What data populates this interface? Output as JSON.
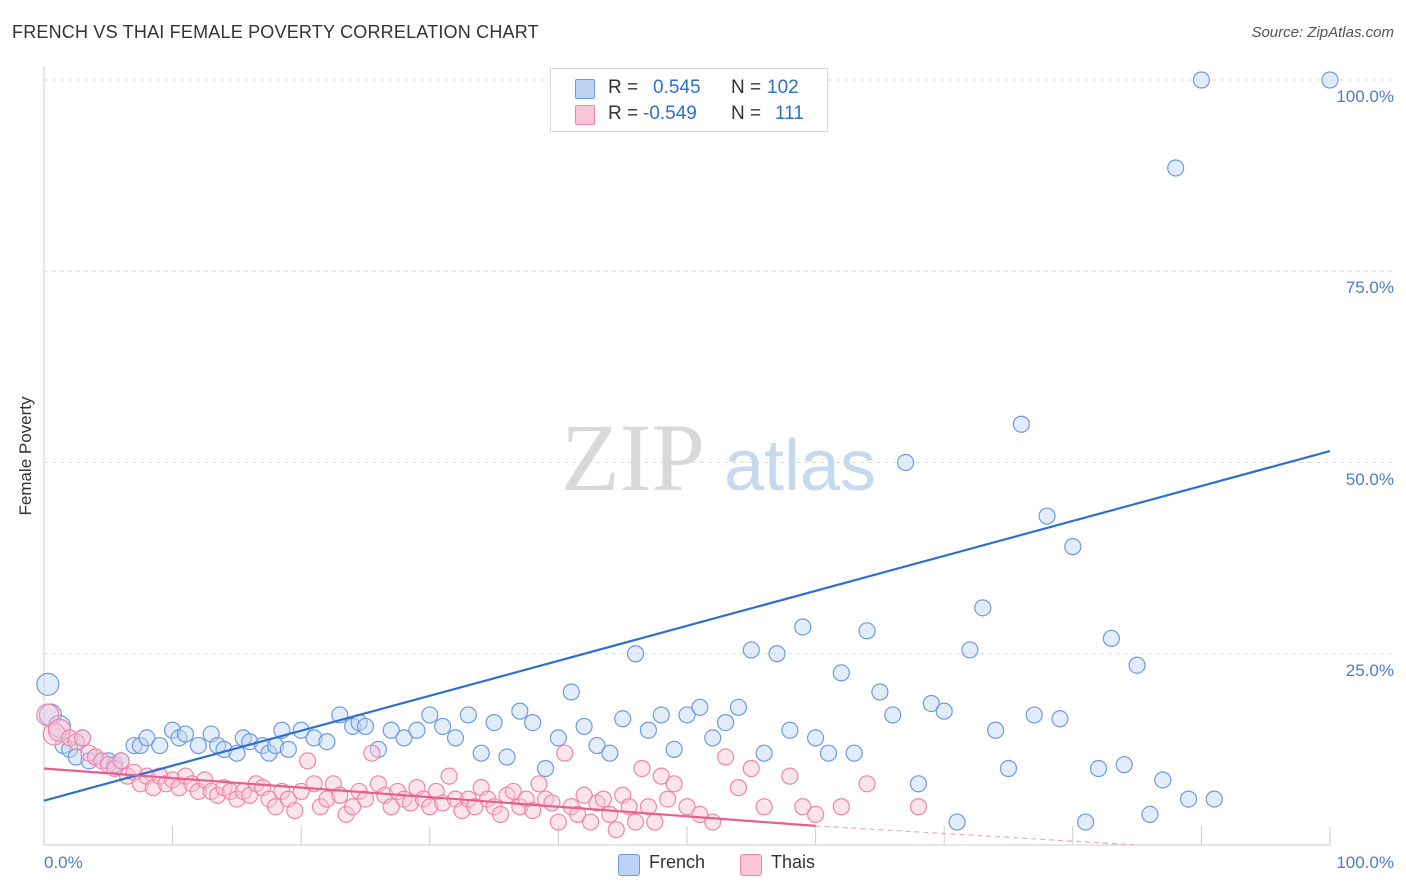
{
  "header": {
    "title": "FRENCH VS THAI FEMALE POVERTY CORRELATION CHART",
    "source": "Source: ZipAtlas.com"
  },
  "legend": {
    "french": {
      "r_label": "R =",
      "r_value": "0.545",
      "n_label": "N =",
      "n_value": "102",
      "color": "#6d9be0"
    },
    "thais": {
      "r_label": "R =",
      "r_value": "-0.549",
      "n_label": "N =",
      "n_value": "111",
      "color": "#ef86a8"
    }
  },
  "bottom_legend": {
    "french": "French",
    "thais": "Thais"
  },
  "watermark": {
    "zip": "ZIP",
    "atlas": "atlas"
  },
  "chart_data": {
    "type": "scatter",
    "title": "FRENCH VS THAI FEMALE POVERTY CORRELATION CHART",
    "xlabel": "",
    "ylabel": "Female Poverty",
    "xlim": [
      0,
      100
    ],
    "ylim": [
      0,
      100
    ],
    "x_tick_labels": [
      "0.0%",
      "100.0%"
    ],
    "y_tick_labels": [
      "100.0%",
      "75.0%",
      "50.0%",
      "25.0%"
    ],
    "y_ticks": [
      100,
      75,
      50,
      25
    ],
    "grid": true,
    "legend_position": "top-center",
    "series": [
      {
        "name": "French",
        "color": "#6d9be0",
        "trend": {
          "x": [
            0,
            100
          ],
          "y": [
            5.8,
            51.5
          ]
        },
        "points": [
          [
            0.3,
            21
          ],
          [
            0.5,
            17
          ],
          [
            1.2,
            15.5
          ],
          [
            1.5,
            13
          ],
          [
            2,
            12.5
          ],
          [
            2.5,
            11.5
          ],
          [
            3,
            14
          ],
          [
            3.5,
            11
          ],
          [
            4,
            11.5
          ],
          [
            5,
            11
          ],
          [
            5.5,
            10.5
          ],
          [
            6,
            11
          ],
          [
            7,
            13
          ],
          [
            7.5,
            13
          ],
          [
            8,
            14
          ],
          [
            9,
            13
          ],
          [
            10,
            15
          ],
          [
            10.5,
            14
          ],
          [
            11,
            14.5
          ],
          [
            12,
            13
          ],
          [
            13,
            14.5
          ],
          [
            13.5,
            13
          ],
          [
            14,
            12.5
          ],
          [
            15,
            12
          ],
          [
            15.5,
            14
          ],
          [
            16,
            13.5
          ],
          [
            17,
            13
          ],
          [
            17.5,
            12
          ],
          [
            18,
            13
          ],
          [
            18.5,
            15
          ],
          [
            19,
            12.5
          ],
          [
            20,
            15
          ],
          [
            21,
            14
          ],
          [
            22,
            13.5
          ],
          [
            23,
            17
          ],
          [
            24,
            15.5
          ],
          [
            24.5,
            16
          ],
          [
            25,
            15.5
          ],
          [
            26,
            12.5
          ],
          [
            27,
            15
          ],
          [
            28,
            14
          ],
          [
            29,
            15
          ],
          [
            30,
            17
          ],
          [
            31,
            15.5
          ],
          [
            32,
            14
          ],
          [
            33,
            17
          ],
          [
            34,
            12
          ],
          [
            35,
            16
          ],
          [
            36,
            11.5
          ],
          [
            37,
            17.5
          ],
          [
            38,
            16
          ],
          [
            39,
            10
          ],
          [
            40,
            14
          ],
          [
            41,
            20
          ],
          [
            42,
            15.5
          ],
          [
            43,
            13
          ],
          [
            44,
            12
          ],
          [
            45,
            16.5
          ],
          [
            46,
            25
          ],
          [
            47,
            15
          ],
          [
            48,
            17
          ],
          [
            49,
            12.5
          ],
          [
            50,
            17
          ],
          [
            51,
            18
          ],
          [
            52,
            14
          ],
          [
            53,
            16
          ],
          [
            54,
            18
          ],
          [
            55,
            25.5
          ],
          [
            56,
            12
          ],
          [
            57,
            25
          ],
          [
            58,
            15
          ],
          [
            59,
            28.5
          ],
          [
            60,
            14
          ],
          [
            61,
            12
          ],
          [
            62,
            22.5
          ],
          [
            63,
            12
          ],
          [
            64,
            28
          ],
          [
            65,
            20
          ],
          [
            66,
            17
          ],
          [
            67,
            50
          ],
          [
            68,
            8
          ],
          [
            69,
            18.5
          ],
          [
            70,
            17.5
          ],
          [
            71,
            3
          ],
          [
            72,
            25.5
          ],
          [
            73,
            31
          ],
          [
            74,
            15
          ],
          [
            75,
            10
          ],
          [
            76,
            55
          ],
          [
            77,
            17
          ],
          [
            78,
            43
          ],
          [
            79,
            16.5
          ],
          [
            80,
            39
          ],
          [
            81,
            3
          ],
          [
            82,
            10
          ],
          [
            83,
            27
          ],
          [
            84,
            10.5
          ],
          [
            85,
            23.5
          ],
          [
            86,
            4
          ],
          [
            87,
            8.5
          ],
          [
            88,
            88.5
          ],
          [
            89,
            6
          ],
          [
            90,
            100
          ],
          [
            91,
            6
          ],
          [
            100,
            100
          ]
        ]
      },
      {
        "name": "Thais",
        "color": "#ef86a8",
        "trend": {
          "x": [
            0,
            60
          ],
          "y": [
            10,
            2.5
          ]
        },
        "dashed_extension": {
          "x": [
            60,
            85
          ],
          "y": [
            2.5,
            -0.6
          ]
        },
        "points": [
          [
            0.3,
            17
          ],
          [
            0.8,
            14.5
          ],
          [
            1.2,
            15
          ],
          [
            2,
            14
          ],
          [
            2.5,
            13.5
          ],
          [
            3,
            14
          ],
          [
            3.5,
            12
          ],
          [
            4,
            11.5
          ],
          [
            4.5,
            11
          ],
          [
            5,
            10.5
          ],
          [
            5.5,
            10
          ],
          [
            6,
            11
          ],
          [
            6.5,
            9
          ],
          [
            7,
            9.5
          ],
          [
            7.5,
            8
          ],
          [
            8,
            9
          ],
          [
            8.5,
            7.5
          ],
          [
            9,
            9
          ],
          [
            9.5,
            8
          ],
          [
            10,
            8.5
          ],
          [
            10.5,
            7.5
          ],
          [
            11,
            9
          ],
          [
            11.5,
            8
          ],
          [
            12,
            7
          ],
          [
            12.5,
            8.5
          ],
          [
            13,
            7
          ],
          [
            13.5,
            6.5
          ],
          [
            14,
            7.5
          ],
          [
            14.5,
            7
          ],
          [
            15,
            6
          ],
          [
            15.5,
            7
          ],
          [
            16,
            6.5
          ],
          [
            16.5,
            8
          ],
          [
            17,
            7.5
          ],
          [
            17.5,
            6
          ],
          [
            18,
            5
          ],
          [
            18.5,
            7
          ],
          [
            19,
            6
          ],
          [
            19.5,
            4.5
          ],
          [
            20,
            7
          ],
          [
            20.5,
            11
          ],
          [
            21,
            8
          ],
          [
            21.5,
            5
          ],
          [
            22,
            6
          ],
          [
            22.5,
            8
          ],
          [
            23,
            6.5
          ],
          [
            23.5,
            4
          ],
          [
            24,
            5
          ],
          [
            24.5,
            7
          ],
          [
            25,
            6
          ],
          [
            25.5,
            12
          ],
          [
            26,
            8
          ],
          [
            26.5,
            6.5
          ],
          [
            27,
            5
          ],
          [
            27.5,
            7
          ],
          [
            28,
            6
          ],
          [
            28.5,
            5.5
          ],
          [
            29,
            7.5
          ],
          [
            29.5,
            6
          ],
          [
            30,
            5
          ],
          [
            30.5,
            7
          ],
          [
            31,
            5.5
          ],
          [
            31.5,
            9
          ],
          [
            32,
            6
          ],
          [
            32.5,
            4.5
          ],
          [
            33,
            6
          ],
          [
            33.5,
            5
          ],
          [
            34,
            7.5
          ],
          [
            34.5,
            6
          ],
          [
            35,
            5
          ],
          [
            35.5,
            4
          ],
          [
            36,
            6.5
          ],
          [
            36.5,
            7
          ],
          [
            37,
            5
          ],
          [
            37.5,
            6
          ],
          [
            38,
            4.5
          ],
          [
            38.5,
            8
          ],
          [
            39,
            6
          ],
          [
            39.5,
            5.5
          ],
          [
            40,
            3
          ],
          [
            40.5,
            12
          ],
          [
            41,
            5
          ],
          [
            41.5,
            4
          ],
          [
            42,
            6.5
          ],
          [
            42.5,
            3
          ],
          [
            43,
            5.5
          ],
          [
            43.5,
            6
          ],
          [
            44,
            4
          ],
          [
            44.5,
            2
          ],
          [
            45,
            6.5
          ],
          [
            45.5,
            5
          ],
          [
            46,
            3
          ],
          [
            46.5,
            10
          ],
          [
            47,
            5
          ],
          [
            47.5,
            3
          ],
          [
            48,
            9
          ],
          [
            48.5,
            6
          ],
          [
            49,
            8
          ],
          [
            50,
            5
          ],
          [
            51,
            4
          ],
          [
            52,
            3
          ],
          [
            53,
            11.5
          ],
          [
            54,
            7.5
          ],
          [
            55,
            10
          ],
          [
            56,
            5
          ],
          [
            58,
            9
          ],
          [
            59,
            5
          ],
          [
            60,
            4
          ],
          [
            62,
            5
          ],
          [
            64,
            8
          ],
          [
            68,
            5
          ]
        ]
      }
    ]
  }
}
